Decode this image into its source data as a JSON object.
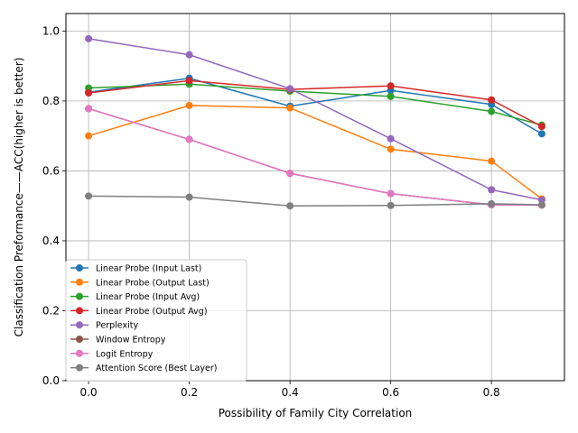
{
  "chart_data": {
    "type": "line",
    "title": "",
    "xlabel": "Possibility of Family City Correlation",
    "ylabel": "Classification Preformance——ACC(higher is better)",
    "xlim": [
      -0.045,
      0.945
    ],
    "ylim": [
      0.0,
      1.05
    ],
    "xticks": [
      0.0,
      0.2,
      0.4,
      0.6,
      0.8
    ],
    "yticks": [
      0.0,
      0.2,
      0.4,
      0.6,
      0.8,
      1.0
    ],
    "xtick_labels": [
      "0.0",
      "0.2",
      "0.4",
      "0.6",
      "0.8"
    ],
    "ytick_labels": [
      "0.0",
      "0.2",
      "0.4",
      "0.6",
      "0.8",
      "1.0"
    ],
    "grid": true,
    "legend_position": "lower-left",
    "x": [
      0.0,
      0.2,
      0.4,
      0.6,
      0.8,
      0.9
    ],
    "series": [
      {
        "name": "Linear Probe (Input Last)",
        "color": "#1f77b4",
        "values": [
          0.825,
          0.865,
          0.785,
          0.83,
          0.79,
          0.706
        ]
      },
      {
        "name": "Linear Probe (Output Last)",
        "color": "#ff7f0e",
        "values": [
          0.7,
          0.787,
          0.78,
          0.662,
          0.628,
          0.52
        ]
      },
      {
        "name": "Linear Probe (Input Avg)",
        "color": "#2ca02c",
        "values": [
          0.837,
          0.848,
          0.828,
          0.813,
          0.77,
          0.731
        ]
      },
      {
        "name": "Linear Probe (Output Avg)",
        "color": "#d62728",
        "values": [
          0.823,
          0.858,
          0.833,
          0.843,
          0.803,
          0.727
        ]
      },
      {
        "name": "Perplexity",
        "color": "#9467bd",
        "values": [
          0.978,
          0.932,
          0.835,
          0.692,
          0.546,
          0.517
        ]
      },
      {
        "name": "Window Entropy",
        "color": "#8c564b",
        "values": [
          0.778,
          0.69,
          0.593,
          0.535,
          0.503,
          0.502
        ]
      },
      {
        "name": "Logit Entropy",
        "color": "#e377c2",
        "values": [
          0.778,
          0.69,
          0.593,
          0.535,
          0.503,
          0.502
        ]
      },
      {
        "name": "Attention Score (Best Layer)",
        "color": "#7f7f7f",
        "values": [
          0.528,
          0.525,
          0.5,
          0.501,
          0.506,
          0.503
        ]
      }
    ]
  }
}
